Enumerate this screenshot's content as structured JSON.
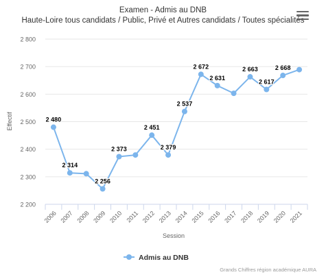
{
  "chart_data": {
    "type": "line",
    "title": "Examen - Admis au DNB",
    "subtitle": "Haute-Loire tous candidats / Public, Privé et Autres candidats / Toutes spécialités",
    "xlabel": "Session",
    "ylabel": "Effectif",
    "ylim": [
      2200,
      2800
    ],
    "yticks": [
      2200,
      2300,
      2400,
      2500,
      2600,
      2700,
      2800
    ],
    "ytick_labels": [
      "2 200",
      "2 300",
      "2 400",
      "2 500",
      "2 600",
      "2 700",
      "2 800"
    ],
    "categories": [
      "2006",
      "2007",
      "2008",
      "2009",
      "2010",
      "2011",
      "2012",
      "2013",
      "2014",
      "2015",
      "2016",
      "2017",
      "2018",
      "2019",
      "2020",
      "2021"
    ],
    "series": [
      {
        "name": "Admis au DNB",
        "values": [
          2480,
          2314,
          2311,
          2256,
          2373,
          2379,
          2451,
          2379,
          2537,
          2672,
          2631,
          2603,
          2663,
          2617,
          2668,
          2689
        ],
        "data_labels": [
          "2 480",
          "2 314",
          "",
          "2 256",
          "2 373",
          "",
          "2 451",
          "2 379",
          "2 537",
          "2 672",
          "2 631",
          "",
          "2 663",
          "2 617",
          "2 668",
          ""
        ]
      }
    ],
    "grid": true,
    "legend_position": "bottom-center",
    "colors": {
      "series": "#7cb5ec",
      "grid": "#e6e6e6",
      "axis": "#ccd6eb"
    }
  },
  "menu_icon": "hamburger-menu-icon",
  "credits": "Grands Chiffres région académique AURA"
}
